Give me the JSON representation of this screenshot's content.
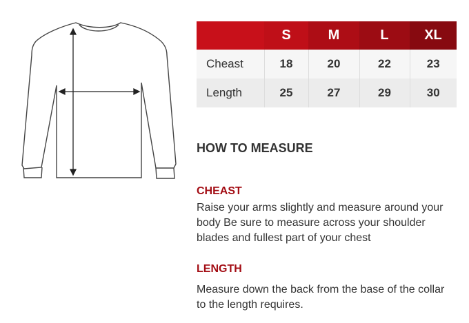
{
  "table": {
    "headers": [
      "",
      "S",
      "M",
      "L",
      "XL"
    ],
    "rows": [
      {
        "label": "Cheast",
        "values": [
          "18",
          "20",
          "22",
          "23"
        ]
      },
      {
        "label": "Length",
        "values": [
          "25",
          "27",
          "29",
          "30"
        ]
      }
    ],
    "header_colors": [
      "#c8101a",
      "#bf0f18",
      "#ad0d15",
      "#9c0c13",
      "#870a10"
    ]
  },
  "guide": {
    "title": "HOW TO MEASURE",
    "sections": [
      {
        "heading": "CHEAST",
        "text": "Raise your arms slightly and measure around your body Be sure to measure across your shoulder blades and fullest part of your chest"
      },
      {
        "heading": "LENGTH",
        "text": "Measure down the back from the base of the collar to the length requires."
      }
    ],
    "accent": "#a30d14"
  },
  "illustration": {
    "icon": "long-sleeve-shirt-outline-icon"
  }
}
